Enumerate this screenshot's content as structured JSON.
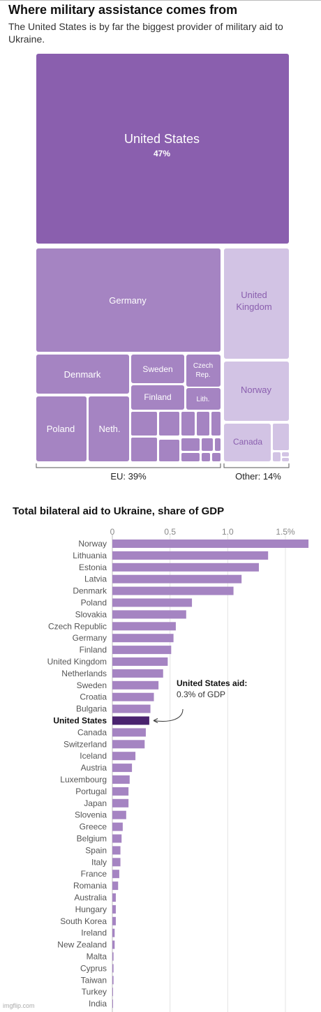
{
  "title": "Where military assistance comes from",
  "subtitle": "The United States is by far the biggest provider of military aid to Ukraine.",
  "treemap": {
    "type": "treemap",
    "cells": [
      {
        "label": "United States",
        "value_label": "47%",
        "color": "#8a5fae"
      },
      {
        "label": "Germany",
        "color": "#a584c2"
      },
      {
        "label": "United Kingdom",
        "color": "#d2c3e4"
      },
      {
        "label": "Norway",
        "color": "#d2c3e4"
      },
      {
        "label": "Canada",
        "color": "#d2c3e4"
      },
      {
        "label": "Denmark",
        "color": "#a584c2"
      },
      {
        "label": "Sweden",
        "color": "#a584c2"
      },
      {
        "label": "Czech Rep.",
        "color": "#a584c2"
      },
      {
        "label": "Finland",
        "color": "#a584c2"
      },
      {
        "label": "Lith.",
        "color": "#a584c2"
      },
      {
        "label": "Poland",
        "color": "#a584c2"
      },
      {
        "label": "Neth.",
        "color": "#a584c2"
      }
    ],
    "groups": [
      {
        "label": "EU: 39%"
      },
      {
        "label": "Other: 14%"
      }
    ]
  },
  "chart_data": {
    "type": "bar",
    "title": "Total bilateral aid to Ukraine, share of GDP",
    "x_ticks": [
      "0",
      "0.5",
      "1.0",
      "1.5%"
    ],
    "xlim": [
      0,
      1.7
    ],
    "categories": [
      "Norway",
      "Lithuania",
      "Estonia",
      "Latvia",
      "Denmark",
      "Poland",
      "Slovakia",
      "Czech Republic",
      "Germany",
      "Finland",
      "United Kingdom",
      "Netherlands",
      "Sweden",
      "Croatia",
      "Bulgaria",
      "United States",
      "Canada",
      "Switzerland",
      "Iceland",
      "Austria",
      "Luxembourg",
      "Portugal",
      "Japan",
      "Slovenia",
      "Greece",
      "Belgium",
      "Spain",
      "Italy",
      "France",
      "Romania",
      "Australia",
      "Hungary",
      "South Korea",
      "Ireland",
      "New Zealand",
      "Malta",
      "Cyprus",
      "Taiwan",
      "Turkey",
      "India"
    ],
    "values": [
      1.7,
      1.35,
      1.27,
      1.12,
      1.05,
      0.69,
      0.64,
      0.55,
      0.53,
      0.51,
      0.48,
      0.44,
      0.4,
      0.36,
      0.33,
      0.32,
      0.29,
      0.28,
      0.2,
      0.17,
      0.15,
      0.14,
      0.14,
      0.12,
      0.09,
      0.08,
      0.07,
      0.07,
      0.06,
      0.05,
      0.03,
      0.03,
      0.03,
      0.02,
      0.02,
      0.01,
      0.01,
      0.01,
      0.005,
      0.002
    ],
    "highlight": "United States",
    "bar_color": "#a584c2",
    "highlight_color": "#4a236f",
    "annotation": {
      "title": "United States aid:",
      "text": "0.3% of GDP"
    }
  },
  "watermark": "imgflip.com"
}
